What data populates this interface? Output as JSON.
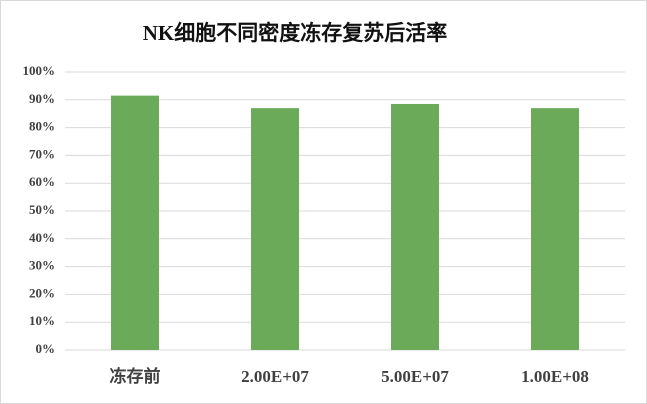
{
  "chart_data": {
    "type": "bar",
    "title": "NK细胞不同密度冻存复苏后活率",
    "categories": [
      "冻存前",
      "2.00E+07",
      "5.00E+07",
      "1.00E+08"
    ],
    "values": [
      91.5,
      87,
      88.5,
      87
    ],
    "color": "#6aaa59",
    "ylim": [
      0,
      100
    ],
    "yticks": [
      {
        "value": 0,
        "label": "0%"
      },
      {
        "value": 10,
        "label": "10%"
      },
      {
        "value": 20,
        "label": "20%"
      },
      {
        "value": 30,
        "label": "30%"
      },
      {
        "value": 40,
        "label": "40%"
      },
      {
        "value": 50,
        "label": "50%"
      },
      {
        "value": 60,
        "label": "60%"
      },
      {
        "value": 70,
        "label": "70%"
      },
      {
        "value": 80,
        "label": "80%"
      },
      {
        "value": 90,
        "label": "90%"
      },
      {
        "value": 100,
        "label": "100%"
      }
    ],
    "grid": true
  }
}
